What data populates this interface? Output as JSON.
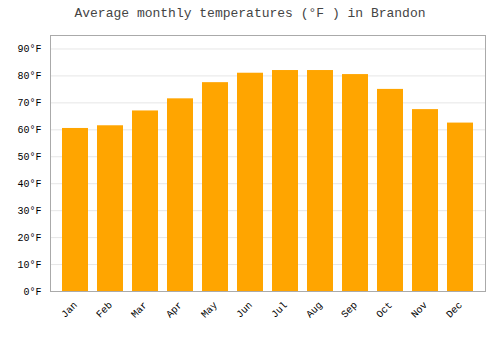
{
  "chart_data": {
    "type": "bar",
    "title": "Average monthly temperatures (°F ) in Brandon",
    "categories": [
      "Jan",
      "Feb",
      "Mar",
      "Apr",
      "May",
      "Jun",
      "Jul",
      "Aug",
      "Sep",
      "Oct",
      "Nov",
      "Dec"
    ],
    "values": [
      60.5,
      61.5,
      67,
      71.5,
      77.5,
      81,
      82,
      82,
      80.5,
      75,
      67.5,
      62.5
    ],
    "color": "#FFA500",
    "ylim": [
      0,
      95
    ],
    "yticks": [
      {
        "value": 0,
        "label": "0°F"
      },
      {
        "value": 10,
        "label": "10°F"
      },
      {
        "value": 20,
        "label": "20°F"
      },
      {
        "value": 30,
        "label": "30°F"
      },
      {
        "value": 40,
        "label": "40°F"
      },
      {
        "value": 50,
        "label": "50°F"
      },
      {
        "value": 60,
        "label": "60°F"
      },
      {
        "value": 70,
        "label": "70°F"
      },
      {
        "value": 80,
        "label": "80°F"
      },
      {
        "value": 90,
        "label": "90°F"
      }
    ],
    "grid": true
  }
}
